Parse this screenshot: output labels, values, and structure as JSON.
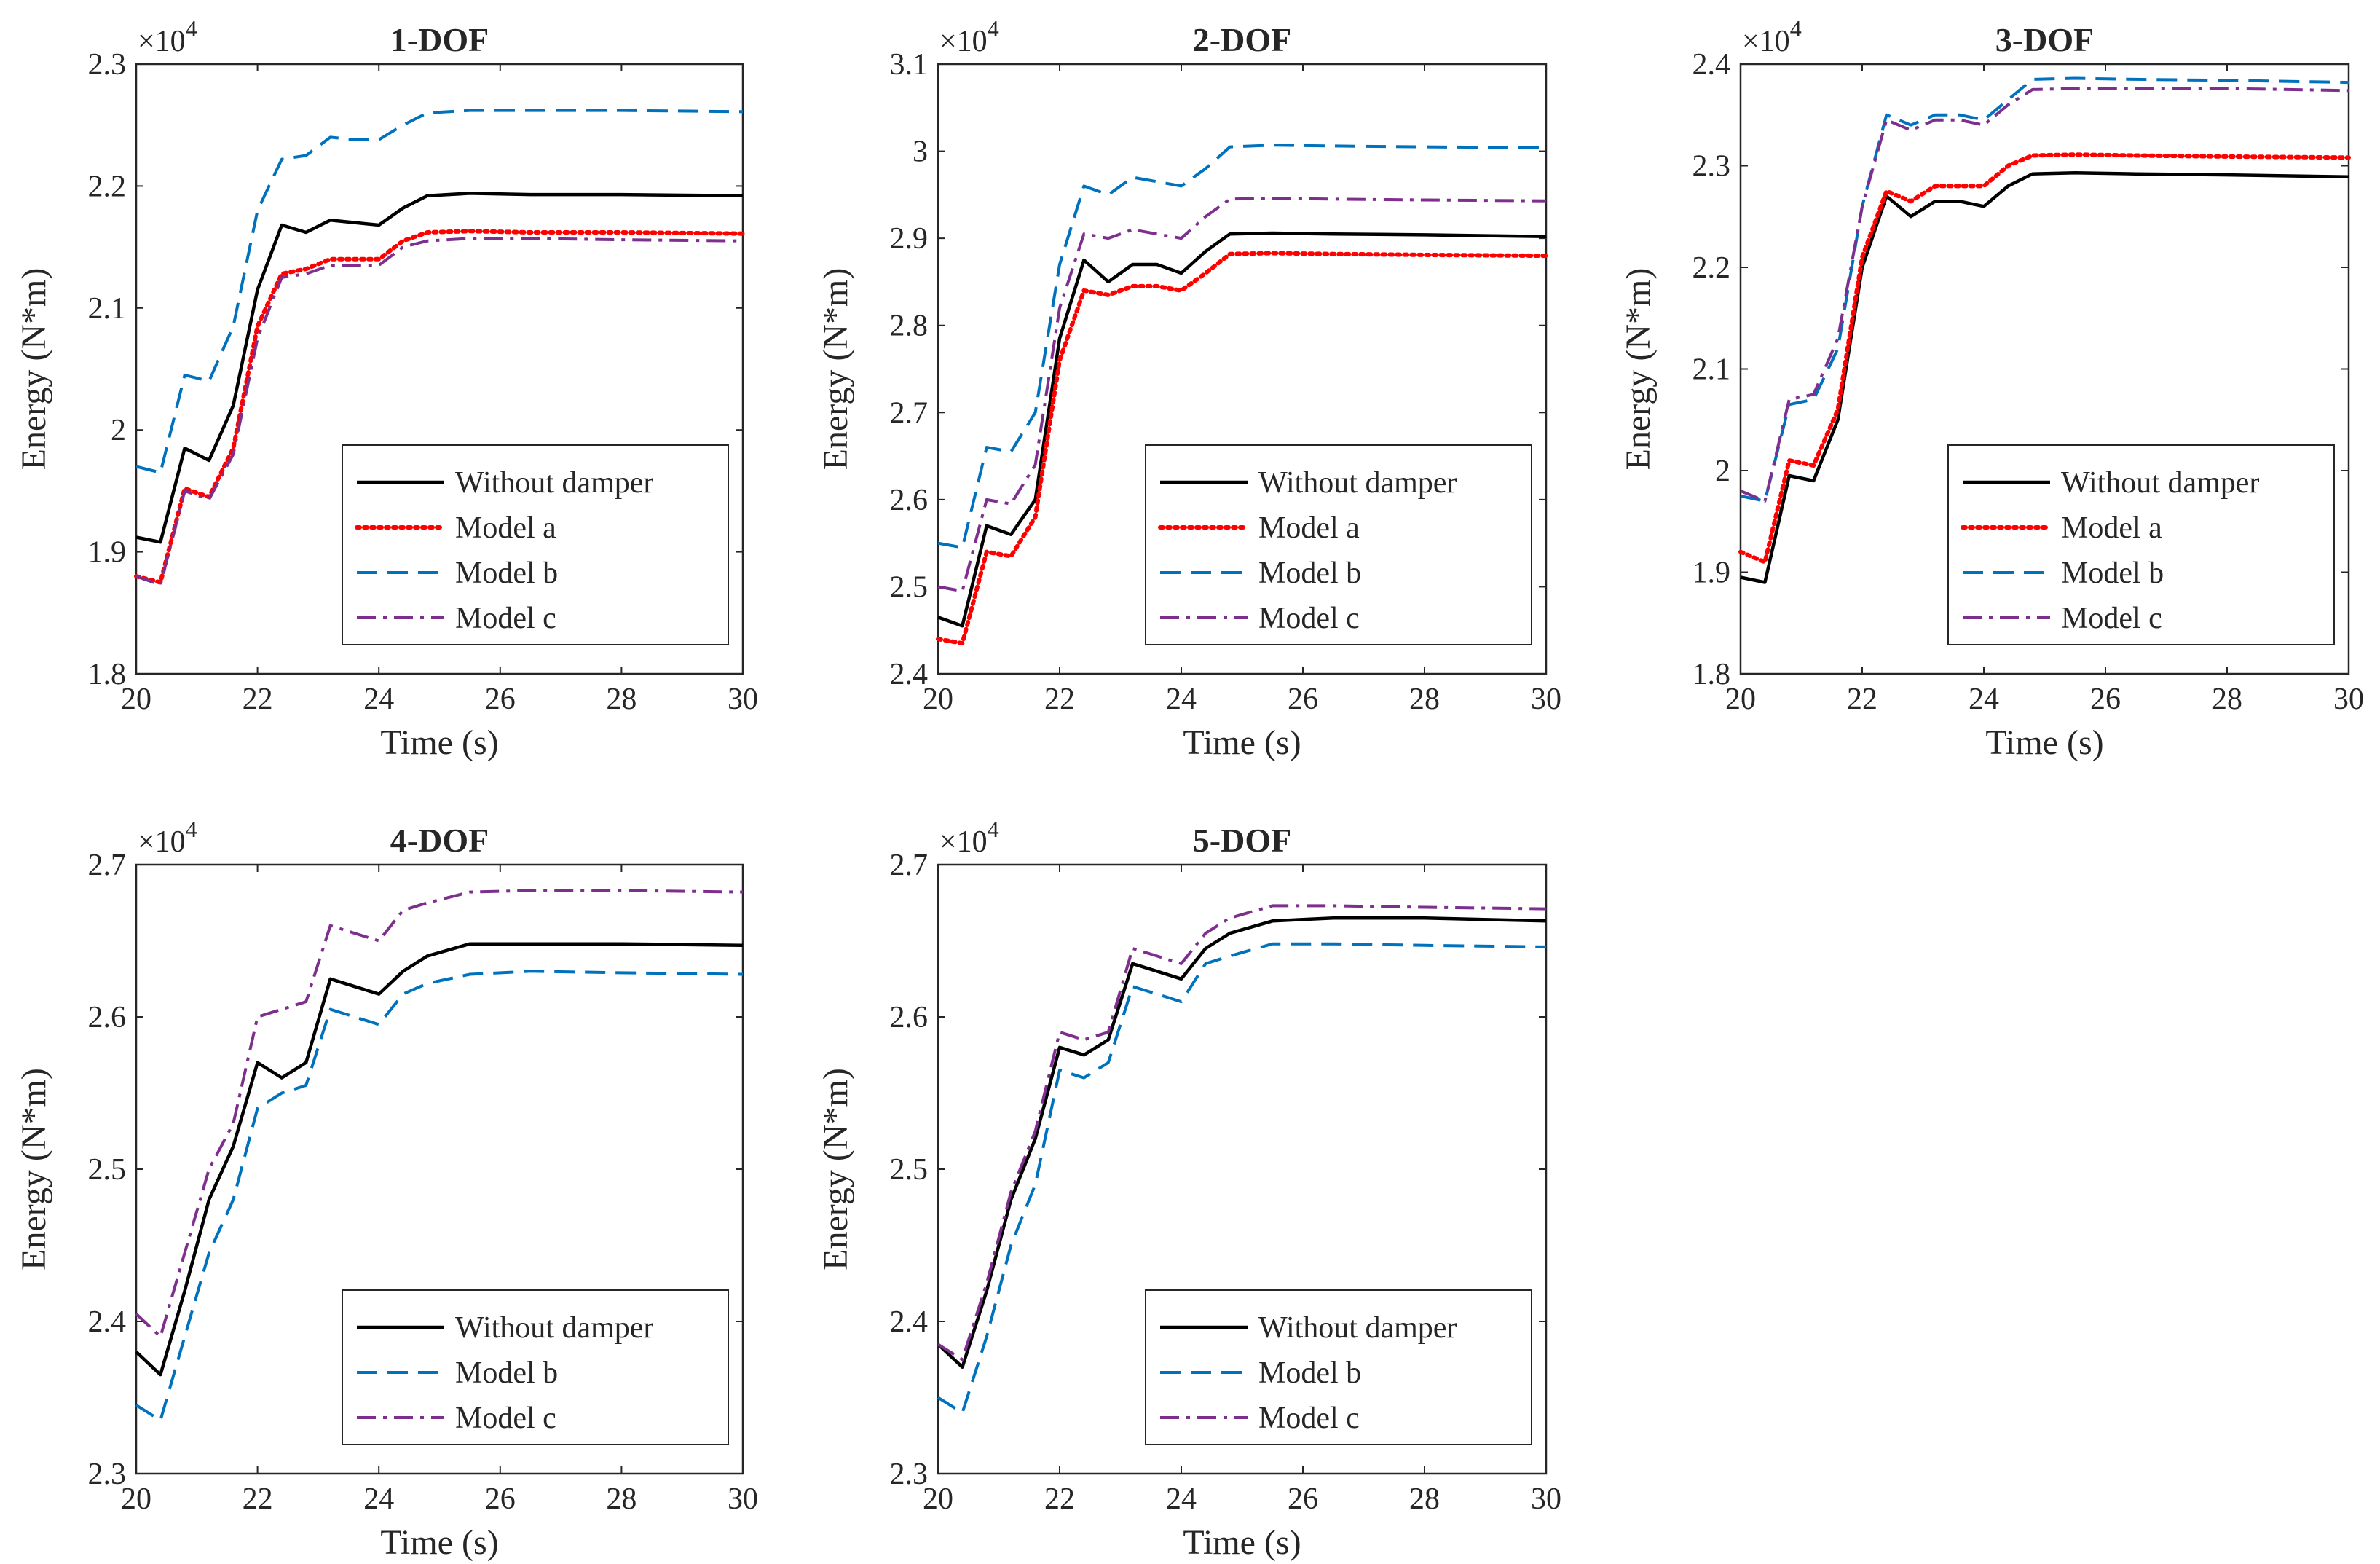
{
  "style": {
    "series_colors": {
      "Without damper": "#000000",
      "Model a": "#ff0000",
      "Model b": "#0072bd",
      "Model c": "#7e2f8e"
    }
  },
  "chart_data": [
    {
      "type": "line",
      "title": "1-DOF",
      "xlabel": "Time (s)",
      "ylabel": "Energy (N*m)",
      "multiplier": "×10",
      "multiplier_exp": "4",
      "xlim": [
        20,
        30
      ],
      "ylim": [
        1.8,
        2.3
      ],
      "xticks": [
        "20",
        "22",
        "24",
        "26",
        "28",
        "30"
      ],
      "yticks": [
        "1.8",
        "1.9",
        "2",
        "2.1",
        "2.2",
        "2.3"
      ],
      "legend_position": "bottom-right",
      "x": [
        20,
        20.4,
        20.8,
        21.2,
        21.6,
        22,
        22.4,
        22.8,
        23.2,
        23.6,
        24,
        24.4,
        24.8,
        25.5,
        26.5,
        28,
        30
      ],
      "series": [
        {
          "name": "Without damper",
          "values": [
            1.912,
            1.908,
            1.985,
            1.975,
            2.02,
            2.115,
            2.168,
            2.162,
            2.172,
            2.17,
            2.168,
            2.182,
            2.192,
            2.194,
            2.193,
            2.193,
            2.192
          ]
        },
        {
          "name": "Model a",
          "values": [
            1.88,
            1.875,
            1.952,
            1.945,
            1.985,
            2.085,
            2.128,
            2.132,
            2.14,
            2.14,
            2.14,
            2.155,
            2.162,
            2.163,
            2.162,
            2.162,
            2.161
          ]
        },
        {
          "name": "Model b",
          "values": [
            1.97,
            1.965,
            2.045,
            2.04,
            2.085,
            2.18,
            2.222,
            2.225,
            2.24,
            2.238,
            2.238,
            2.25,
            2.26,
            2.262,
            2.262,
            2.262,
            2.261
          ]
        },
        {
          "name": "Model c",
          "values": [
            1.88,
            1.873,
            1.95,
            1.943,
            1.98,
            2.075,
            2.125,
            2.128,
            2.135,
            2.135,
            2.135,
            2.15,
            2.155,
            2.157,
            2.157,
            2.156,
            2.155
          ]
        }
      ]
    },
    {
      "type": "line",
      "title": "2-DOF",
      "xlabel": "Time (s)",
      "ylabel": "Energy (N*m)",
      "multiplier": "×10",
      "multiplier_exp": "4",
      "xlim": [
        20,
        30
      ],
      "ylim": [
        2.4,
        3.1
      ],
      "xticks": [
        "20",
        "22",
        "24",
        "26",
        "28",
        "30"
      ],
      "yticks": [
        "2.4",
        "2.5",
        "2.6",
        "2.7",
        "2.8",
        "2.9",
        "3",
        "3.1"
      ],
      "legend_position": "bottom-right",
      "x": [
        20,
        20.4,
        20.8,
        21.2,
        21.6,
        22,
        22.4,
        22.8,
        23.2,
        23.6,
        24,
        24.4,
        24.8,
        25.5,
        26.5,
        28,
        30
      ],
      "series": [
        {
          "name": "Without damper",
          "values": [
            2.465,
            2.455,
            2.57,
            2.56,
            2.6,
            2.785,
            2.875,
            2.85,
            2.87,
            2.87,
            2.86,
            2.885,
            2.905,
            2.906,
            2.905,
            2.904,
            2.902
          ]
        },
        {
          "name": "Model a",
          "values": [
            2.44,
            2.435,
            2.54,
            2.535,
            2.58,
            2.76,
            2.84,
            2.835,
            2.845,
            2.845,
            2.84,
            2.86,
            2.882,
            2.883,
            2.882,
            2.881,
            2.88
          ]
        },
        {
          "name": "Model b",
          "values": [
            2.55,
            2.545,
            2.66,
            2.655,
            2.7,
            2.87,
            2.96,
            2.95,
            2.97,
            2.965,
            2.96,
            2.98,
            3.005,
            3.007,
            3.006,
            3.005,
            3.004
          ]
        },
        {
          "name": "Model c",
          "values": [
            2.5,
            2.495,
            2.6,
            2.595,
            2.64,
            2.82,
            2.905,
            2.9,
            2.91,
            2.905,
            2.9,
            2.925,
            2.945,
            2.946,
            2.945,
            2.944,
            2.943
          ]
        }
      ]
    },
    {
      "type": "line",
      "title": "3-DOF",
      "xlabel": "Time (s)",
      "ylabel": "Energy (N*m)",
      "multiplier": "×10",
      "multiplier_exp": "4",
      "xlim": [
        20,
        30
      ],
      "ylim": [
        1.8,
        2.4
      ],
      "xticks": [
        "20",
        "22",
        "24",
        "26",
        "28",
        "30"
      ],
      "yticks": [
        "1.8",
        "1.9",
        "2",
        "2.1",
        "2.2",
        "2.3",
        "2.4"
      ],
      "legend_position": "bottom-right",
      "x": [
        20,
        20.4,
        20.8,
        21.2,
        21.6,
        22,
        22.4,
        22.8,
        23.2,
        23.6,
        24,
        24.4,
        24.8,
        25.5,
        26.5,
        28,
        30
      ],
      "series": [
        {
          "name": "Without damper",
          "values": [
            1.895,
            1.89,
            1.995,
            1.99,
            2.05,
            2.2,
            2.27,
            2.25,
            2.265,
            2.265,
            2.26,
            2.28,
            2.292,
            2.293,
            2.292,
            2.291,
            2.289
          ]
        },
        {
          "name": "Model a",
          "values": [
            1.92,
            1.91,
            2.01,
            2.005,
            2.06,
            2.21,
            2.275,
            2.265,
            2.28,
            2.28,
            2.28,
            2.3,
            2.31,
            2.311,
            2.31,
            2.309,
            2.308
          ]
        },
        {
          "name": "Model b",
          "values": [
            1.975,
            1.97,
            2.065,
            2.07,
            2.12,
            2.26,
            2.35,
            2.34,
            2.35,
            2.35,
            2.345,
            2.365,
            2.385,
            2.386,
            2.385,
            2.384,
            2.382
          ]
        },
        {
          "name": "Model c",
          "values": [
            1.98,
            1.97,
            2.07,
            2.075,
            2.13,
            2.26,
            2.345,
            2.335,
            2.345,
            2.345,
            2.34,
            2.36,
            2.375,
            2.376,
            2.376,
            2.376,
            2.374
          ]
        }
      ]
    },
    {
      "type": "line",
      "title": "4-DOF",
      "xlabel": "Time (s)",
      "ylabel": "Energy (N*m)",
      "multiplier": "×10",
      "multiplier_exp": "4",
      "xlim": [
        20,
        30
      ],
      "ylim": [
        2.3,
        2.7
      ],
      "xticks": [
        "20",
        "22",
        "24",
        "26",
        "28",
        "30"
      ],
      "yticks": [
        "2.3",
        "2.4",
        "2.5",
        "2.6",
        "2.7"
      ],
      "legend_position": "bottom-right",
      "x": [
        20,
        20.4,
        20.8,
        21.2,
        21.6,
        22,
        22.4,
        22.8,
        23.2,
        23.6,
        24,
        24.4,
        24.8,
        25.5,
        26.5,
        28,
        30
      ],
      "series": [
        {
          "name": "Without damper",
          "values": [
            2.38,
            2.365,
            2.42,
            2.48,
            2.515,
            2.57,
            2.56,
            2.57,
            2.625,
            2.62,
            2.615,
            2.63,
            2.64,
            2.648,
            2.648,
            2.648,
            2.647
          ]
        },
        {
          "name": "Model b",
          "values": [
            2.345,
            2.335,
            2.39,
            2.445,
            2.48,
            2.54,
            2.55,
            2.555,
            2.605,
            2.6,
            2.595,
            2.615,
            2.622,
            2.628,
            2.63,
            2.629,
            2.628
          ]
        },
        {
          "name": "Model c",
          "values": [
            2.405,
            2.39,
            2.445,
            2.5,
            2.53,
            2.6,
            2.605,
            2.61,
            2.66,
            2.655,
            2.65,
            2.67,
            2.675,
            2.682,
            2.683,
            2.683,
            2.682
          ]
        }
      ]
    },
    {
      "type": "line",
      "title": "5-DOF",
      "xlabel": "Time (s)",
      "ylabel": "Energy (N*m)",
      "multiplier": "×10",
      "multiplier_exp": "4",
      "xlim": [
        20,
        30
      ],
      "ylim": [
        2.3,
        2.7
      ],
      "xticks": [
        "20",
        "22",
        "24",
        "26",
        "28",
        "30"
      ],
      "yticks": [
        "2.3",
        "2.4",
        "2.5",
        "2.6",
        "2.7"
      ],
      "legend_position": "bottom-right",
      "x": [
        20,
        20.4,
        20.8,
        21.2,
        21.6,
        22,
        22.4,
        22.8,
        23.2,
        23.6,
        24,
        24.4,
        24.8,
        25.5,
        26.5,
        28,
        30
      ],
      "series": [
        {
          "name": "Without damper",
          "values": [
            2.385,
            2.37,
            2.42,
            2.48,
            2.52,
            2.58,
            2.575,
            2.585,
            2.635,
            2.63,
            2.625,
            2.645,
            2.655,
            2.663,
            2.665,
            2.665,
            2.663
          ]
        },
        {
          "name": "Model b",
          "values": [
            2.35,
            2.34,
            2.39,
            2.45,
            2.49,
            2.565,
            2.56,
            2.57,
            2.62,
            2.615,
            2.61,
            2.635,
            2.64,
            2.648,
            2.648,
            2.647,
            2.646
          ]
        },
        {
          "name": "Model c",
          "values": [
            2.385,
            2.375,
            2.425,
            2.485,
            2.525,
            2.59,
            2.585,
            2.59,
            2.645,
            2.64,
            2.635,
            2.655,
            2.665,
            2.673,
            2.673,
            2.672,
            2.671
          ]
        }
      ]
    }
  ]
}
